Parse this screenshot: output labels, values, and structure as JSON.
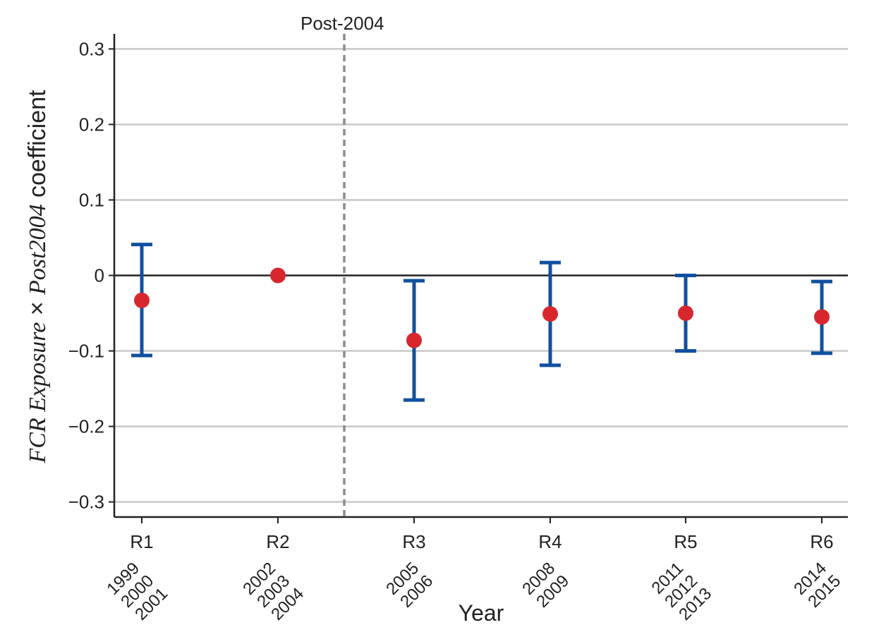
{
  "chart_data": {
    "type": "scatter",
    "title": "",
    "xlabel": "Year",
    "ylabel_parts": [
      "FCR Exposure",
      " × ",
      "Post2004",
      " coefficient"
    ],
    "ylim": [
      -0.32,
      0.32
    ],
    "yticks": [
      0.3,
      0.2,
      0.1,
      0,
      -0.1,
      -0.2,
      -0.3
    ],
    "ytick_labels": [
      "0.3",
      "0.2",
      "0.1",
      "0",
      "−0.1",
      "−0.2",
      "−0.3"
    ],
    "grid": true,
    "categories": [
      "R1",
      "R2",
      "R3",
      "R4",
      "R5",
      "R6"
    ],
    "years": [
      [
        "1999",
        "2000",
        "2001"
      ],
      [
        "2002",
        "2003",
        "2004"
      ],
      [
        "2005",
        "2006"
      ],
      [
        "2008",
        "2009"
      ],
      [
        "2011",
        "2012",
        "2013"
      ],
      [
        "2014",
        "2015"
      ]
    ],
    "coefficients": [
      -0.033,
      0.0,
      -0.086,
      -0.051,
      -0.05,
      -0.055
    ],
    "ci_low": [
      -0.106,
      null,
      -0.165,
      -0.119,
      -0.1,
      -0.103
    ],
    "ci_high": [
      0.041,
      null,
      -0.007,
      0.017,
      0.0,
      -0.008
    ],
    "vline_label": "Post-2004",
    "colors": {
      "point": "#d7262e",
      "errorbar": "#1050a0",
      "grid": "#c8c8c8",
      "zero_line": "#222222",
      "vline": "#8c8c8c"
    }
  }
}
